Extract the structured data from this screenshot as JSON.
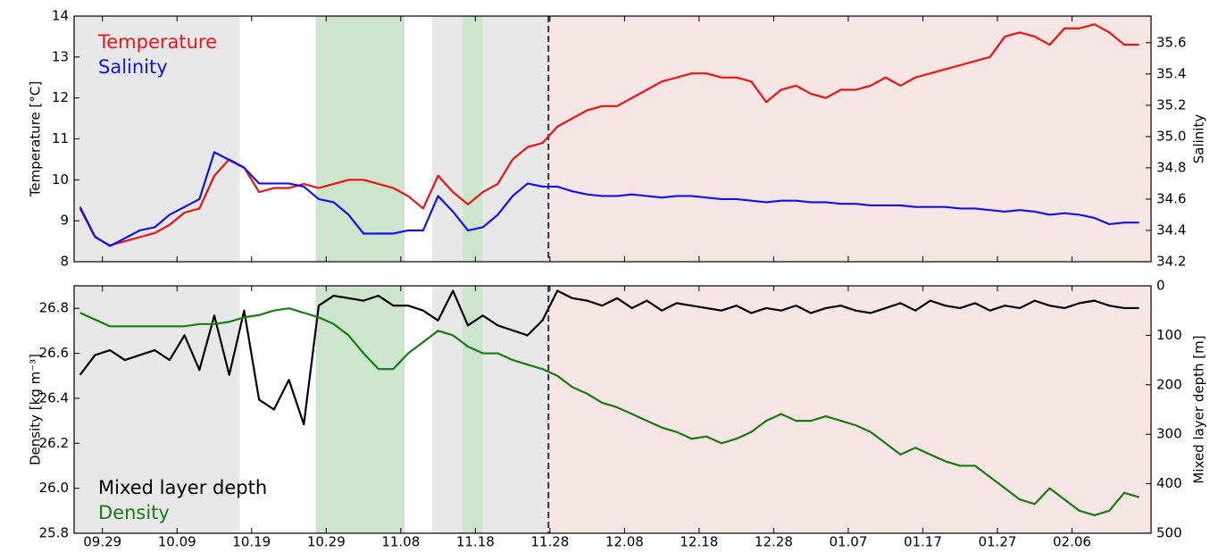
{
  "chart_data": [
    {
      "type": "line",
      "x": [
        -3,
        -1,
        1,
        3,
        5,
        7,
        9,
        11,
        13,
        15,
        17,
        19,
        21,
        23,
        25,
        27,
        29,
        31,
        33,
        35,
        37,
        39,
        41,
        43,
        45,
        47,
        49,
        51,
        53,
        55,
        57,
        59,
        61,
        63,
        65,
        67,
        69,
        71,
        73,
        75,
        77,
        79,
        81,
        83,
        85,
        87,
        89,
        91,
        93,
        95,
        97,
        99,
        101,
        103,
        105,
        107,
        109,
        111,
        113,
        115,
        117,
        119,
        121,
        123,
        125,
        127,
        129,
        131,
        133,
        135,
        137,
        139
      ],
      "series": [
        {
          "name": "Temperature",
          "color": "#ee1111",
          "axis": "y",
          "values": [
            9.3,
            8.6,
            8.4,
            8.5,
            8.6,
            8.7,
            8.9,
            9.2,
            9.3,
            10.1,
            10.5,
            10.3,
            9.7,
            9.8,
            9.8,
            9.9,
            9.8,
            9.9,
            10.0,
            10.0,
            9.9,
            9.8,
            9.6,
            9.3,
            10.1,
            9.7,
            9.4,
            9.7,
            9.9,
            10.5,
            10.8,
            10.9,
            11.3,
            11.5,
            11.7,
            11.8,
            11.8,
            12.0,
            12.2,
            12.4,
            12.5,
            12.6,
            12.6,
            12.5,
            12.5,
            12.4,
            11.9,
            12.2,
            12.3,
            12.1,
            12.0,
            12.2,
            12.2,
            12.3,
            12.5,
            12.3,
            12.5,
            12.6,
            12.7,
            12.8,
            12.9,
            13.0,
            13.5,
            13.6,
            13.5,
            13.3,
            13.7,
            13.7,
            13.8,
            13.6,
            13.3,
            13.3
          ]
        },
        {
          "name": "Salinity",
          "color": "#1111ee",
          "axis": "y2",
          "values": [
            34.55,
            34.36,
            34.3,
            34.35,
            34.4,
            34.42,
            34.5,
            34.55,
            34.6,
            34.9,
            34.85,
            34.8,
            34.7,
            34.7,
            34.7,
            34.68,
            34.6,
            34.58,
            34.5,
            34.38,
            34.38,
            34.38,
            34.4,
            34.4,
            34.62,
            34.52,
            34.4,
            34.42,
            34.5,
            34.62,
            34.7,
            34.68,
            34.68,
            34.65,
            34.63,
            34.62,
            34.62,
            34.63,
            34.62,
            34.61,
            34.62,
            34.62,
            34.61,
            34.6,
            34.6,
            34.59,
            34.58,
            34.59,
            34.59,
            34.58,
            34.58,
            34.57,
            34.57,
            34.56,
            34.56,
            34.56,
            34.55,
            34.55,
            34.55,
            34.54,
            34.54,
            34.53,
            34.52,
            34.53,
            34.52,
            34.5,
            34.51,
            34.5,
            34.48,
            34.44,
            34.45,
            34.45
          ]
        }
      ],
      "legend": "upper left",
      "xlim": [
        -3.8,
        140.6
      ],
      "ylim": [
        8,
        14
      ],
      "yticks": [
        8,
        9,
        10,
        11,
        12,
        13,
        14
      ],
      "y2lim": [
        34.2,
        35.77
      ],
      "y2ticks": [
        34.2,
        34.4,
        34.6,
        34.8,
        {
          "value": 35,
          "label": "35.0"
        },
        35.2,
        35.4,
        35.6
      ],
      "ylabel": "Temperature [°C]",
      "y2label": "Salinity",
      "spans": [
        {
          "start": -3.8,
          "end": 18.4,
          "color": "#e8e8e8"
        },
        {
          "start": 28.6,
          "end": 40.5,
          "color": "#cde4cd"
        },
        {
          "start": 44.2,
          "end": 48.3,
          "color": "#e8e8e8"
        },
        {
          "start": 48.3,
          "end": 51.0,
          "color": "#cde4cd"
        },
        {
          "start": 51.0,
          "end": 59.8,
          "color": "#e8e8e8"
        },
        {
          "start": 59.8,
          "end": 140.6,
          "color": "#f5e5e4"
        }
      ],
      "vline": 59.8
    },
    {
      "type": "line",
      "x": [
        -3,
        -1,
        1,
        3,
        5,
        7,
        9,
        11,
        13,
        15,
        17,
        19,
        21,
        23,
        25,
        27,
        29,
        31,
        33,
        35,
        37,
        39,
        41,
        43,
        45,
        47,
        49,
        51,
        53,
        55,
        57,
        59,
        61,
        63,
        65,
        67,
        69,
        71,
        73,
        75,
        77,
        79,
        81,
        83,
        85,
        87,
        89,
        91,
        93,
        95,
        97,
        99,
        101,
        103,
        105,
        107,
        109,
        111,
        113,
        115,
        117,
        119,
        121,
        123,
        125,
        127,
        129,
        131,
        133,
        135,
        137,
        139
      ],
      "series": [
        {
          "name": "Mixed layer depth",
          "color": "#000000",
          "axis": "y2",
          "values": [
            180,
            140,
            130,
            150,
            140,
            130,
            150,
            100,
            170,
            60,
            180,
            50,
            230,
            250,
            190,
            280,
            40,
            20,
            25,
            30,
            20,
            40,
            40,
            50,
            70,
            10,
            80,
            60,
            80,
            90,
            100,
            70,
            10,
            25,
            30,
            40,
            25,
            45,
            30,
            50,
            35,
            40,
            45,
            50,
            40,
            55,
            45,
            50,
            40,
            55,
            45,
            40,
            50,
            55,
            45,
            35,
            50,
            30,
            40,
            45,
            35,
            50,
            40,
            45,
            30,
            40,
            45,
            35,
            30,
            40,
            45,
            45
          ]
        },
        {
          "name": "Density",
          "color": "#1a7a12",
          "axis": "y",
          "values": [
            26.78,
            26.75,
            26.72,
            26.72,
            26.72,
            26.72,
            26.72,
            26.72,
            26.73,
            26.73,
            26.74,
            26.76,
            26.77,
            26.79,
            26.8,
            26.78,
            26.76,
            26.73,
            26.68,
            26.6,
            26.53,
            26.53,
            26.6,
            26.65,
            26.7,
            26.68,
            26.63,
            26.6,
            26.6,
            26.57,
            26.55,
            26.53,
            26.5,
            26.45,
            26.42,
            26.38,
            26.36,
            26.33,
            26.3,
            26.27,
            26.25,
            26.22,
            26.23,
            26.2,
            26.22,
            26.25,
            26.3,
            26.33,
            26.3,
            26.3,
            26.32,
            26.3,
            26.28,
            26.25,
            26.2,
            26.15,
            26.18,
            26.15,
            26.12,
            26.1,
            26.1,
            26.05,
            26.0,
            25.95,
            25.93,
            26.0,
            25.95,
            25.9,
            25.88,
            25.9,
            25.98,
            25.96
          ]
        }
      ],
      "legend": "lower left",
      "xlim": [
        -3.8,
        140.6
      ],
      "xticks": [
        {
          "value": 0,
          "label": "09.29"
        },
        {
          "value": 10,
          "label": "10.09"
        },
        {
          "value": 20,
          "label": "10.19"
        },
        {
          "value": 30,
          "label": "10.29"
        },
        {
          "value": 40,
          "label": "11.08"
        },
        {
          "value": 50,
          "label": "11.18"
        },
        {
          "value": 60,
          "label": "11.28"
        },
        {
          "value": 70,
          "label": "12.08"
        },
        {
          "value": 80,
          "label": "12.18"
        },
        {
          "value": 90,
          "label": "12.28"
        },
        {
          "value": 100,
          "label": "01.07"
        },
        {
          "value": 110,
          "label": "01.17"
        },
        {
          "value": 120,
          "label": "01.27"
        },
        {
          "value": 130,
          "label": "02.06"
        }
      ],
      "ylim": [
        25.8,
        26.9
      ],
      "yticks": [
        25.8,
        {
          "value": 26,
          "label": "26.0"
        },
        26.2,
        26.4,
        26.6,
        26.8
      ],
      "y2lim": [
        500,
        0
      ],
      "y2ticks": [
        0,
        100,
        200,
        300,
        400,
        500
      ],
      "ylabel": "Density [kg m⁻³]",
      "y2label": "Mixed layer depth [m]",
      "spans": [
        {
          "start": -3.8,
          "end": 18.4,
          "color": "#e8e8e8"
        },
        {
          "start": 28.6,
          "end": 40.5,
          "color": "#cde4cd"
        },
        {
          "start": 44.2,
          "end": 48.3,
          "color": "#e8e8e8"
        },
        {
          "start": 48.3,
          "end": 51.0,
          "color": "#cde4cd"
        },
        {
          "start": 51.0,
          "end": 59.8,
          "color": "#e8e8e8"
        },
        {
          "start": 59.8,
          "end": 140.6,
          "color": "#f5e5e4"
        }
      ],
      "vline": 59.8
    }
  ]
}
